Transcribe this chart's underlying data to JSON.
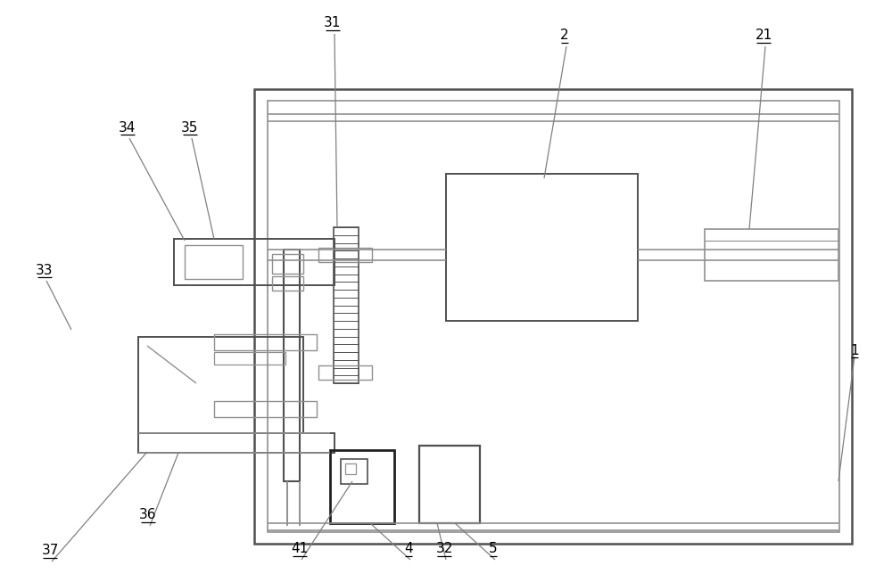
{
  "bg_color": "#ffffff",
  "lc": "#909090",
  "dc": "#505050",
  "fig_width": 10.0,
  "fig_height": 6.53,
  "dpi": 100
}
